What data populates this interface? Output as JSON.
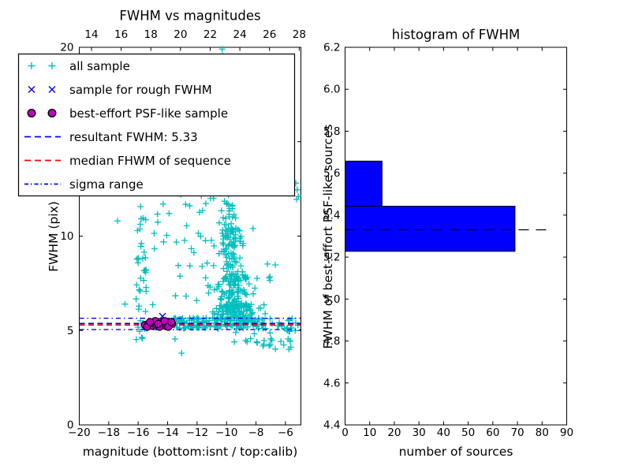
{
  "figure": {
    "background": "#ffffff",
    "axes_color": "#000000"
  },
  "legend": {
    "items": [
      {
        "label": "all sample",
        "type": "marker",
        "marker": "plus",
        "color": "#00bfbf"
      },
      {
        "label": "sample for rough FWHM",
        "type": "marker",
        "marker": "cross",
        "color": "#0000ff"
      },
      {
        "label": "best-effort PSF-like sample",
        "type": "marker",
        "marker": "circle",
        "color": "#bf00bf"
      },
      {
        "label": "resultant FWHM: 5.33",
        "type": "line",
        "style": "dashed",
        "color": "#0000ff"
      },
      {
        "label": "median FHWM of sequence",
        "type": "line",
        "style": "dashed",
        "color": "#ff0000"
      },
      {
        "label": "sigma range",
        "type": "line",
        "style": "dashdot",
        "color": "#0000ff"
      }
    ]
  },
  "chart_data": [
    {
      "type": "scatter",
      "title": "FWHM vs magnitudes",
      "xlabel": "magnitude (bottom:isnt / top:calib)",
      "ylabel": "FWHM (pix)",
      "xlim": [
        -20,
        -4.95
      ],
      "ylim": [
        0,
        20
      ],
      "top_axis": {
        "ticks": [
          14,
          16,
          18,
          20,
          22,
          24,
          26,
          28
        ],
        "labels": [
          "14",
          "16",
          "18",
          "20",
          "22",
          "24",
          "26",
          "28"
        ]
      },
      "xticks": {
        "values": [
          -20,
          -18,
          -16,
          -14,
          -12,
          -10,
          -8,
          -6
        ],
        "labels": [
          "−20",
          "−18",
          "−16",
          "−14",
          "−12",
          "−10",
          "−8",
          "−6"
        ]
      },
      "yticks": {
        "values": [
          0,
          5,
          10,
          15,
          20
        ],
        "labels": [
          "0",
          "5",
          "10",
          "15",
          "20"
        ]
      },
      "grid": false,
      "series": [
        {
          "name": "all sample",
          "marker": "plus",
          "color": "#00bfbf",
          "clusters": [
            {
              "x": [
                -16.15,
                -15.35
              ],
              "y": [
                4.35,
                9.8
              ],
              "n": 34
            },
            {
              "x": [
                -16.2,
                -15.4
              ],
              "y": [
                10.2,
                11.8
              ],
              "n": 7
            },
            {
              "x": [
                -15.2,
                -10.7
              ],
              "y": [
                6.2,
                12.4
              ],
              "n": 40
            },
            {
              "x": [
                -10.45,
                -9.2
              ],
              "y": [
                10.5,
                13.2
              ],
              "n": 28,
              "x_bias": "center"
            },
            {
              "x": [
                -10.6,
                -8.7
              ],
              "y": [
                8.0,
                10.5
              ],
              "n": 80,
              "x_bias": "center"
            },
            {
              "x": [
                -10.8,
                -8.3
              ],
              "y": [
                6.3,
                8.0
              ],
              "n": 105,
              "x_bias": "center"
            },
            {
              "x": [
                -11.2,
                -7.9
              ],
              "y": [
                5.55,
                6.3
              ],
              "n": 85,
              "x_bias": "center"
            },
            {
              "x": [
                -13.7,
                -7.1
              ],
              "y": [
                5.08,
                5.68
              ],
              "n": 150
            },
            {
              "x": [
                -7.1,
                -5.15
              ],
              "y": [
                4.95,
                5.65
              ],
              "n": 20
            },
            {
              "x": [
                -9.6,
                -5.2
              ],
              "y": [
                4.0,
                4.9
              ],
              "n": 24
            },
            {
              "x": [
                -8.4,
                -6.5
              ],
              "y": [
                5.7,
                8.8
              ],
              "n": 12
            }
          ],
          "points": [
            [
              -10.3,
              19.9
            ],
            [
              -10.25,
              19.55
            ],
            [
              -5.3,
              12.8
            ],
            [
              -5.2,
              12.45
            ],
            [
              -5.12,
              12.1
            ],
            [
              -5.25,
              11.95
            ],
            [
              -17.4,
              10.8
            ],
            [
              -16.9,
              6.4
            ],
            [
              -13.5,
              4.55
            ],
            [
              -13.05,
              3.8
            ],
            [
              -14.3,
              11.7
            ],
            [
              -13.9,
              11.2
            ],
            [
              -13.1,
              12.2
            ],
            [
              -12.5,
              11.6
            ],
            [
              -11.1,
              12.0
            ],
            [
              -10.5,
              10.7
            ],
            [
              -12.2,
              13.05
            ],
            [
              -9.9,
              13.4
            ],
            [
              -9.6,
              13.0
            ],
            [
              -10.1,
              12.7
            ],
            [
              -8.2,
              10.4
            ],
            [
              -15.9,
              12.9
            ]
          ]
        },
        {
          "name": "sample for rough FWHM",
          "marker": "cross",
          "color": "#0000ff",
          "points": [
            [
              -14.35,
              5.75
            ],
            [
              -14.62,
              5.52
            ],
            [
              -15.05,
              5.32
            ],
            [
              -14.1,
              5.42
            ]
          ]
        },
        {
          "name": "best-effort PSF-like sample",
          "marker": "circle",
          "color": "#bf00bf",
          "edge": "#000000",
          "points": [
            [
              -15.55,
              5.3
            ],
            [
              -15.3,
              5.35
            ],
            [
              -15.1,
              5.25
            ],
            [
              -14.95,
              5.4
            ],
            [
              -14.75,
              5.3
            ],
            [
              -14.6,
              5.45
            ],
            [
              -14.45,
              5.3
            ],
            [
              -14.3,
              5.35
            ],
            [
              -14.15,
              5.25
            ],
            [
              -14.0,
              5.4
            ],
            [
              -13.85,
              5.3
            ],
            [
              -13.7,
              5.35
            ],
            [
              -15.4,
              5.2
            ],
            [
              -14.85,
              5.5
            ],
            [
              -14.55,
              5.2
            ],
            [
              -14.2,
              5.5
            ],
            [
              -13.95,
              5.2
            ],
            [
              -15.2,
              5.45
            ],
            [
              -13.75,
              5.45
            ],
            [
              -14.65,
              5.35
            ]
          ]
        }
      ],
      "lines": [
        {
          "name": "resultant FWHM",
          "y": 5.33,
          "style": "dashed",
          "color": "#0000ff"
        },
        {
          "name": "median FHWM of sequence",
          "y": 5.31,
          "style": "dashed",
          "color": "#ff0000"
        },
        {
          "name": "sigma range upper",
          "y": 5.65,
          "style": "dashdot",
          "color": "#0000ff"
        },
        {
          "name": "sigma range lower",
          "y": 5.05,
          "style": "dashdot",
          "color": "#0000ff"
        }
      ]
    },
    {
      "type": "bar-horizontal",
      "title": "histogram of FWHM",
      "xlabel": "number of sources",
      "ylabel": "FWHM of best-effort PSF-like sources",
      "xlim": [
        0,
        90
      ],
      "ylim": [
        4.4,
        6.2
      ],
      "xticks": {
        "values": [
          0,
          10,
          20,
          30,
          40,
          50,
          60,
          70,
          80,
          90
        ],
        "labels": [
          "0",
          "10",
          "20",
          "30",
          "40",
          "50",
          "60",
          "70",
          "80",
          "90"
        ]
      },
      "yticks": {
        "values": [
          4.4,
          4.6,
          4.8,
          5.0,
          5.2,
          5.4,
          5.6,
          5.8,
          6.0,
          6.2
        ],
        "labels": [
          "4.4",
          "4.6",
          "4.8",
          "5.0",
          "5.2",
          "5.4",
          "5.6",
          "5.8",
          "6.0",
          "6.2"
        ]
      },
      "grid": false,
      "bar_color": "#0000ff",
      "bins": [
        {
          "from": 5.2275,
          "to": 5.4425,
          "count": 69
        },
        {
          "from": 5.4425,
          "to": 5.6575,
          "count": 15
        }
      ],
      "marker_line": {
        "name": "resultant FWHM",
        "y": 5.33,
        "style": "dashed",
        "color": "#000000"
      }
    }
  ]
}
